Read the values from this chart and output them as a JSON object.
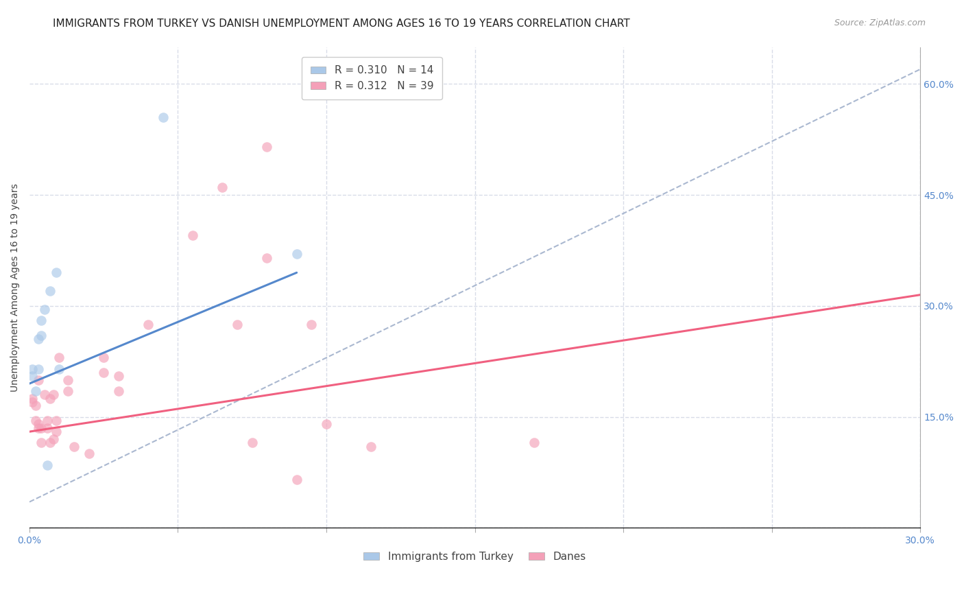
{
  "title": "IMMIGRANTS FROM TURKEY VS DANISH UNEMPLOYMENT AMONG AGES 16 TO 19 YEARS CORRELATION CHART",
  "source": "Source: ZipAtlas.com",
  "ylabel": "Unemployment Among Ages 16 to 19 years",
  "x_ticks": [
    0.0,
    0.05,
    0.1,
    0.15,
    0.2,
    0.25,
    0.3
  ],
  "x_tick_labels": [
    "0.0%",
    "",
    "",
    "",
    "",
    "",
    "30.0%"
  ],
  "y_ticks_right": [
    0.0,
    0.15,
    0.3,
    0.45,
    0.6
  ],
  "y_tick_labels_right": [
    "",
    "15.0%",
    "30.0%",
    "45.0%",
    "60.0%"
  ],
  "xlim": [
    0.0,
    0.3
  ],
  "ylim": [
    0.0,
    0.65
  ],
  "blue_scatter_x": [
    0.001,
    0.001,
    0.002,
    0.003,
    0.003,
    0.004,
    0.004,
    0.005,
    0.006,
    0.007,
    0.009,
    0.01,
    0.045,
    0.09
  ],
  "blue_scatter_y": [
    0.205,
    0.215,
    0.185,
    0.215,
    0.255,
    0.26,
    0.28,
    0.295,
    0.085,
    0.32,
    0.345,
    0.215,
    0.555,
    0.37
  ],
  "pink_scatter_x": [
    0.001,
    0.001,
    0.002,
    0.002,
    0.003,
    0.003,
    0.003,
    0.004,
    0.004,
    0.005,
    0.006,
    0.006,
    0.007,
    0.007,
    0.008,
    0.008,
    0.009,
    0.009,
    0.01,
    0.013,
    0.013,
    0.015,
    0.02,
    0.025,
    0.025,
    0.03,
    0.03,
    0.04,
    0.055,
    0.065,
    0.07,
    0.075,
    0.08,
    0.08,
    0.09,
    0.095,
    0.1,
    0.115,
    0.17
  ],
  "pink_scatter_y": [
    0.17,
    0.175,
    0.165,
    0.145,
    0.135,
    0.14,
    0.2,
    0.115,
    0.135,
    0.18,
    0.135,
    0.145,
    0.175,
    0.115,
    0.12,
    0.18,
    0.13,
    0.145,
    0.23,
    0.2,
    0.185,
    0.11,
    0.1,
    0.23,
    0.21,
    0.205,
    0.185,
    0.275,
    0.395,
    0.46,
    0.275,
    0.115,
    0.365,
    0.515,
    0.065,
    0.275,
    0.14,
    0.11,
    0.115
  ],
  "blue_line_x": [
    0.0,
    0.09
  ],
  "blue_line_y": [
    0.195,
    0.345
  ],
  "pink_line_x": [
    0.0,
    0.3
  ],
  "pink_line_y": [
    0.13,
    0.315
  ],
  "dash_line_x": [
    0.0,
    0.3
  ],
  "dash_line_y": [
    0.035,
    0.62
  ],
  "scatter_size": 110,
  "scatter_alpha": 0.65,
  "blue_color": "#aac8e8",
  "pink_color": "#f4a0b8",
  "blue_line_color": "#5588cc",
  "pink_line_color": "#f06080",
  "dash_line_color": "#aab8d0",
  "background_color": "#ffffff",
  "grid_color": "#d8dce8",
  "title_fontsize": 11,
  "source_fontsize": 9,
  "axis_label_fontsize": 10,
  "tick_fontsize": 10,
  "legend_fontsize": 11
}
